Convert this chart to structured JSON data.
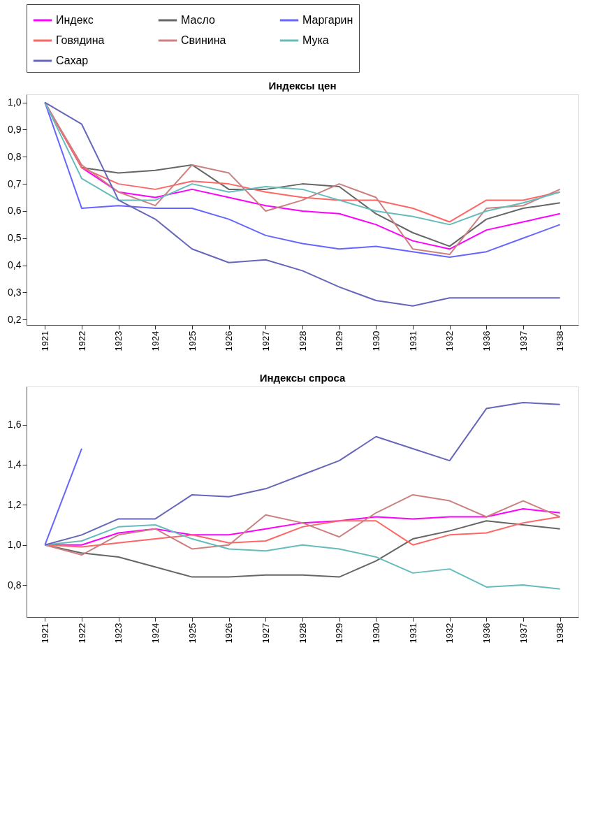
{
  "chart_data": [
    {
      "type": "line",
      "title": "Индексы цен",
      "legend": "top",
      "grid": false,
      "line_style": "solid",
      "marker": "none",
      "categories": [
        "1921",
        "1922",
        "1923",
        "1924",
        "1925",
        "1926",
        "1927",
        "1928",
        "1929",
        "1930",
        "1931",
        "1932",
        "1936",
        "1937",
        "1938"
      ],
      "ylim": [
        0.18,
        1.03
      ],
      "yticks": [
        {
          "value": 0.2,
          "label": "0,2"
        },
        {
          "value": 0.3,
          "label": "0,3"
        },
        {
          "value": 0.4,
          "label": "0,4"
        },
        {
          "value": 0.5,
          "label": "0,5"
        },
        {
          "value": 0.6,
          "label": "0,6"
        },
        {
          "value": 0.7,
          "label": "0,7"
        },
        {
          "value": 0.8,
          "label": "0,8"
        },
        {
          "value": 0.9,
          "label": "0,9"
        },
        {
          "value": 1.0,
          "label": "1,0"
        }
      ],
      "series": [
        {
          "name": "Индекс",
          "color": "#ff00ff",
          "values": [
            1.0,
            0.76,
            0.67,
            0.65,
            0.68,
            0.65,
            0.62,
            0.6,
            0.59,
            0.55,
            0.49,
            0.46,
            0.53,
            0.56,
            0.59
          ]
        },
        {
          "name": "Масло",
          "color": "#666666",
          "values": [
            1.0,
            0.76,
            0.74,
            0.75,
            0.77,
            0.68,
            0.68,
            0.7,
            0.69,
            0.59,
            0.52,
            0.47,
            0.57,
            0.61,
            0.63
          ]
        },
        {
          "name": "Маргарин",
          "color": "#6666ff",
          "values": [
            1.0,
            0.61,
            0.62,
            0.61,
            0.61,
            0.57,
            0.51,
            0.48,
            0.46,
            0.47,
            0.45,
            0.43,
            0.45,
            0.5,
            0.55
          ]
        },
        {
          "name": "Говядина",
          "color": "#ff6666",
          "values": [
            1.0,
            0.76,
            0.7,
            0.68,
            0.71,
            0.7,
            0.67,
            0.65,
            0.64,
            0.64,
            0.61,
            0.56,
            0.64,
            0.64,
            0.67
          ]
        },
        {
          "name": "Свинина",
          "color": "#cc8080",
          "values": [
            1.0,
            0.77,
            0.67,
            0.62,
            0.77,
            0.74,
            0.6,
            0.64,
            0.7,
            0.65,
            0.46,
            0.44,
            0.61,
            0.62,
            0.68
          ]
        },
        {
          "name": "Мука",
          "color": "#66bbbb",
          "values": [
            1.0,
            0.72,
            0.64,
            0.64,
            0.7,
            0.67,
            0.69,
            0.68,
            0.64,
            0.6,
            0.58,
            0.55,
            0.6,
            0.63,
            0.67
          ]
        },
        {
          "name": "Сахар",
          "color": "#6666bb",
          "values": [
            1.0,
            0.92,
            0.64,
            0.57,
            0.46,
            0.41,
            0.42,
            0.38,
            0.32,
            0.27,
            0.25,
            0.28,
            0.28,
            0.28,
            0.28
          ]
        }
      ]
    },
    {
      "type": "line",
      "title": "Индексы спроса",
      "grid": false,
      "line_style": "solid",
      "marker": "none",
      "categories": [
        "1921",
        "1922",
        "1923",
        "1924",
        "1925",
        "1926",
        "1927",
        "1928",
        "1929",
        "1930",
        "1931",
        "1932",
        "1936",
        "1937",
        "1938"
      ],
      "ylim": [
        0.64,
        1.79
      ],
      "yticks": [
        {
          "value": 0.8,
          "label": "0,8"
        },
        {
          "value": 1.0,
          "label": "1,0"
        },
        {
          "value": 1.2,
          "label": "1,2"
        },
        {
          "value": 1.4,
          "label": "1,4"
        },
        {
          "value": 1.6,
          "label": "1,6"
        }
      ],
      "series": [
        {
          "name": "Индекс",
          "color": "#ff00ff",
          "values": [
            1.0,
            1.0,
            1.06,
            1.08,
            1.05,
            1.05,
            1.08,
            1.11,
            1.12,
            1.14,
            1.13,
            1.14,
            1.14,
            1.18,
            1.16
          ]
        },
        {
          "name": "Масло",
          "color": "#666666",
          "values": [
            1.0,
            0.96,
            0.94,
            0.89,
            0.84,
            0.84,
            0.85,
            0.85,
            0.84,
            0.92,
            1.03,
            1.07,
            1.12,
            1.1,
            1.08
          ]
        },
        {
          "name": "Маргарин",
          "color": "#6666ff",
          "values": [
            1.0,
            1.48,
            null,
            null,
            null,
            null,
            null,
            null,
            null,
            null,
            null,
            null,
            null,
            null,
            null
          ]
        },
        {
          "name": "Говядина",
          "color": "#ff6666",
          "values": [
            1.0,
            0.99,
            1.01,
            1.03,
            1.05,
            1.01,
            1.02,
            1.09,
            1.12,
            1.12,
            1.0,
            1.05,
            1.06,
            1.11,
            1.14
          ]
        },
        {
          "name": "Свинина",
          "color": "#cc8080",
          "values": [
            1.0,
            0.95,
            1.05,
            1.08,
            0.98,
            1.0,
            1.15,
            1.11,
            1.04,
            1.16,
            1.25,
            1.22,
            1.14,
            1.22,
            1.14
          ]
        },
        {
          "name": "Мука",
          "color": "#66bbbb",
          "values": [
            1.0,
            1.02,
            1.09,
            1.1,
            1.03,
            0.98,
            0.97,
            1.0,
            0.98,
            0.94,
            0.86,
            0.88,
            0.79,
            0.8,
            0.78
          ]
        },
        {
          "name": "Сахар",
          "color": "#6666bb",
          "values": [
            1.0,
            1.05,
            1.13,
            1.13,
            1.25,
            1.24,
            1.28,
            1.35,
            1.42,
            1.54,
            1.48,
            1.42,
            1.68,
            1.71,
            1.7
          ]
        }
      ]
    }
  ]
}
